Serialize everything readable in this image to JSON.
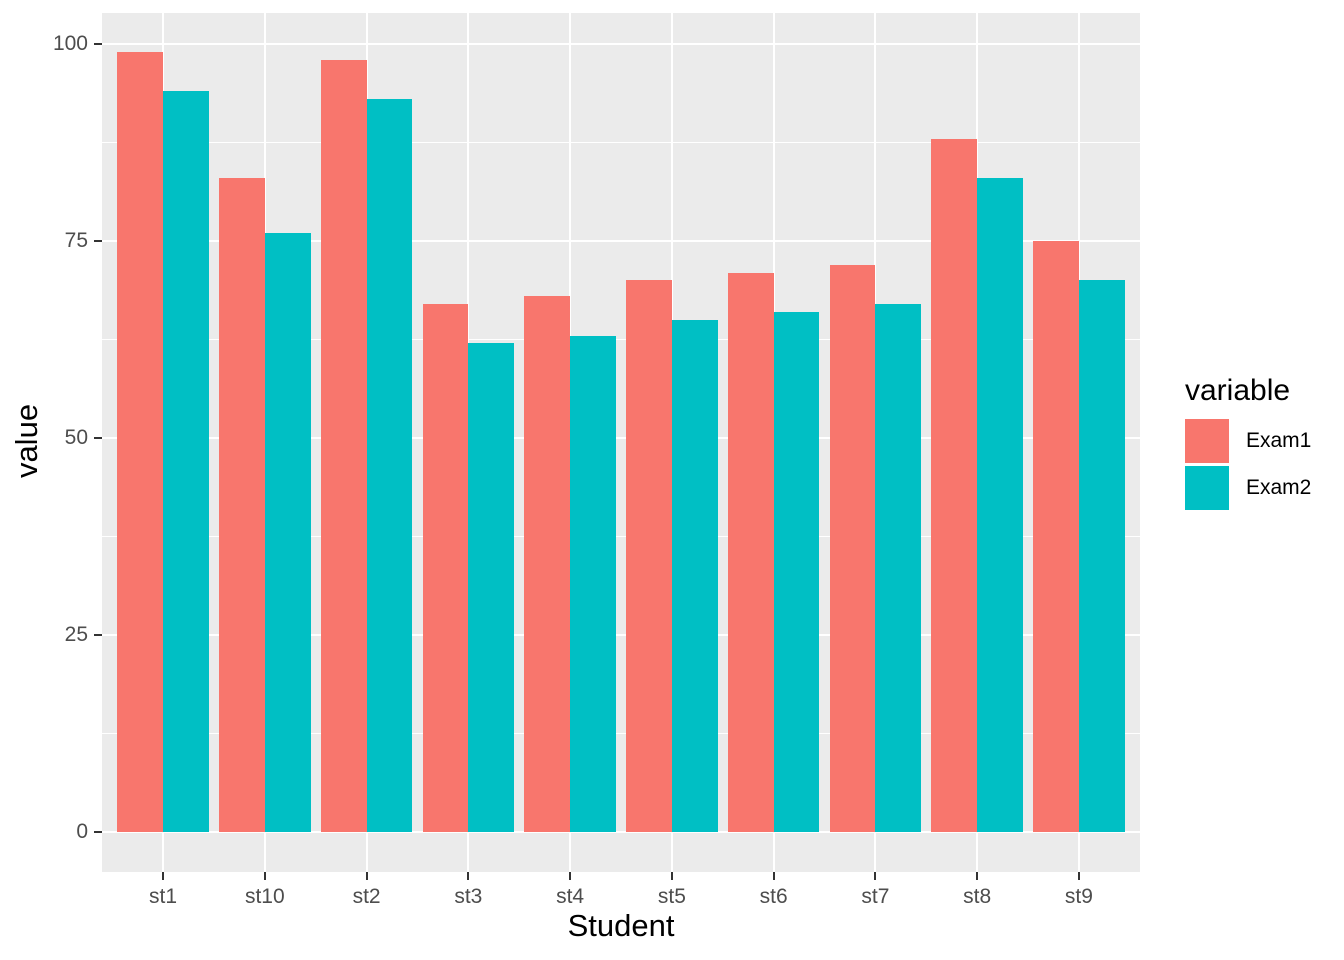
{
  "chart_data": {
    "type": "bar",
    "title": "",
    "xlabel": "Student",
    "ylabel": "value",
    "legend_title": "variable",
    "legend_position": "right",
    "categories": [
      "st1",
      "st10",
      "st2",
      "st3",
      "st4",
      "st5",
      "st6",
      "st7",
      "st8",
      "st9"
    ],
    "series": [
      {
        "name": "Exam1",
        "color": "#F8766D",
        "values": [
          99,
          83,
          98,
          67,
          68,
          70,
          71,
          72,
          88,
          75
        ]
      },
      {
        "name": "Exam2",
        "color": "#00BFC4",
        "values": [
          94,
          76,
          93,
          62,
          63,
          65,
          66,
          67,
          83,
          70
        ]
      }
    ],
    "y_ticks": [
      0,
      25,
      50,
      75,
      100
    ],
    "y_minor_ticks": [
      12.5,
      37.5,
      62.5,
      87.5
    ],
    "ylim": [
      -4.95,
      103.95
    ],
    "grid": true,
    "style": {
      "panel_bg": "#EBEBEB",
      "grid_color": "#FFFFFF",
      "tick_label_color": "#4D4D4D",
      "tick_mark_color": "#333333",
      "axis_title_color": "#000000",
      "bar_width_fraction": 0.9
    }
  }
}
